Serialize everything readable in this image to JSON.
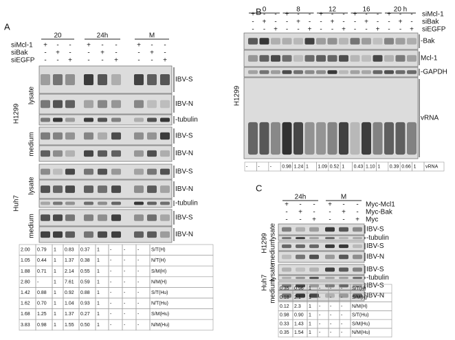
{
  "panels": [
    {
      "label": "A",
      "groups": [
        "20",
        "24h",
        "M"
      ],
      "conditions": [
        {
          "name": "siMcl-1",
          "signs": [
            "+",
            "-",
            "-",
            "+",
            "-",
            "-",
            "+",
            "-",
            "-"
          ]
        },
        {
          "name": "siBak",
          "signs": [
            "-",
            "+",
            "-",
            "-",
            "+",
            "-",
            "-",
            "+",
            "-"
          ]
        },
        {
          "name": "siEGFP",
          "signs": [
            "-",
            "-",
            "+",
            "-",
            "-",
            "+",
            "-",
            "-",
            "+"
          ]
        }
      ],
      "cell_lines": [
        {
          "name": "H1299",
          "sections": [
            {
              "name": "lysate",
              "bands": [
                "IBV-S",
                "IBV-N",
                "-tubulin"
              ]
            },
            {
              "name": "medium",
              "bands": [
                "IBV-S",
                "IBV-N"
              ]
            }
          ]
        },
        {
          "name": "Huh7",
          "sections": [
            {
              "name": "lysate",
              "bands": [
                "IBV-S",
                "IBV-N",
                "-tubulin"
              ]
            },
            {
              "name": "medium",
              "bands": [
                "IBV-S",
                "IBV-N"
              ]
            }
          ]
        }
      ],
      "table": {
        "rows": [
          [
            "2.00",
            "0.79",
            "1",
            "0.83",
            "0.37",
            "1",
            "-",
            "-",
            "-",
            "S/T(H)"
          ],
          [
            "1.05",
            "0.44",
            "1",
            "1.37",
            "0.38",
            "1",
            "-",
            "-",
            "-",
            "N/T(H)"
          ],
          [
            "1.88",
            "0.71",
            "1",
            "2.14",
            "0.55",
            "1",
            "-",
            "-",
            "-",
            "S/M(H)"
          ],
          [
            "2.80",
            "-",
            "1",
            "7.61",
            "0.59",
            "1",
            "-",
            "-",
            "-",
            "N/M(H)"
          ],
          [
            "1.42",
            "0.88",
            "1",
            "0.92",
            "0.88",
            "1",
            "-",
            "-",
            "-",
            "S/T(Hu)"
          ],
          [
            "1.62",
            "0.70",
            "1",
            "1.04",
            "0.93",
            "1",
            "-",
            "-",
            "-",
            "N/T(Hu)"
          ],
          [
            "1.68",
            "1.25",
            "1",
            "1.37",
            "0.27",
            "1",
            "-",
            "-",
            "-",
            "S/M(Hu)"
          ],
          [
            "3.83",
            "0.98",
            "1",
            "1.55",
            "0.50",
            "1",
            "-",
            "-",
            "-",
            "N/M(Hu)"
          ]
        ]
      }
    },
    {
      "label": "B",
      "groups": [
        "0",
        "8",
        "12",
        "16",
        "20 h"
      ],
      "conditions": [
        {
          "name": "siMcl-1",
          "signs": [
            "+",
            "-",
            "-",
            "+",
            "-",
            "-",
            "+",
            "-",
            "-",
            "+",
            "-",
            "-",
            "+",
            "-",
            "-"
          ]
        },
        {
          "name": "siBak",
          "signs": [
            "-",
            "+",
            "-",
            "-",
            "+",
            "-",
            "-",
            "+",
            "-",
            "-",
            "+",
            "-",
            "-",
            "+",
            "-"
          ]
        },
        {
          "name": "siEGFP",
          "signs": [
            "-",
            "-",
            "+",
            "-",
            "-",
            "+",
            "-",
            "-",
            "+",
            "-",
            "-",
            "+",
            "-",
            "-",
            "+"
          ]
        }
      ],
      "cell_lines": [
        {
          "name": "H1299",
          "bands": [
            "-Bak",
            "Mcl-1",
            "-GAPDH",
            "vRNA"
          ]
        }
      ],
      "table": {
        "rows": [
          [
            "-",
            "-",
            "-",
            "0.98",
            "1.24",
            "1",
            "1.09",
            "0.52",
            "1",
            "0.43",
            "1.10",
            "1",
            "0.39",
            "0.66",
            "1",
            "vRNA"
          ]
        ]
      }
    },
    {
      "label": "C",
      "groups": [
        "24h",
        "M"
      ],
      "conditions": [
        {
          "name": "Myc-Mcl1",
          "signs": [
            "+",
            "-",
            "-",
            "+",
            "-",
            "-"
          ]
        },
        {
          "name": "Myc-Bak",
          "signs": [
            "-",
            "+",
            "-",
            "-",
            "+",
            "-"
          ]
        },
        {
          "name": "Myc",
          "signs": [
            "-",
            "-",
            "+",
            "-",
            "-",
            "+"
          ]
        }
      ],
      "cell_lines": [
        {
          "name": "H1299",
          "sections": [
            {
              "name": "lysate",
              "bands": [
                "IBV-S",
                "-tubulin"
              ]
            },
            {
              "name": "medium",
              "bands": [
                "IBV-S",
                "IBV-N"
              ]
            }
          ]
        },
        {
          "name": "Huh7",
          "sections": [
            {
              "name": "lysate",
              "bands": [
                "IBV-S",
                "-tubulin"
              ]
            },
            {
              "name": "medium",
              "bands": [
                "IBV-S",
                "IBV-N"
              ]
            }
          ]
        }
      ],
      "table": {
        "rows": [
          [
            "0.35",
            "0.96",
            "1",
            "-",
            "-",
            "-",
            "S/T(H)"
          ],
          [
            "0.18",
            "2.1",
            "1",
            "-",
            "-",
            "-",
            "S/M(H)"
          ],
          [
            "0.12",
            "2.3",
            "1",
            "-",
            "-",
            "-",
            "N/M(H)"
          ],
          [
            "0.98",
            "0.90",
            "1",
            "-",
            "-",
            "-",
            "S/T(Hu)"
          ],
          [
            "0.33",
            "1.43",
            "1",
            "-",
            "-",
            "-",
            "S/M(Hu)"
          ],
          [
            "0.35",
            "1.54",
            "1",
            "-",
            "-",
            "-",
            "N/M(Hu)"
          ]
        ]
      }
    }
  ]
}
